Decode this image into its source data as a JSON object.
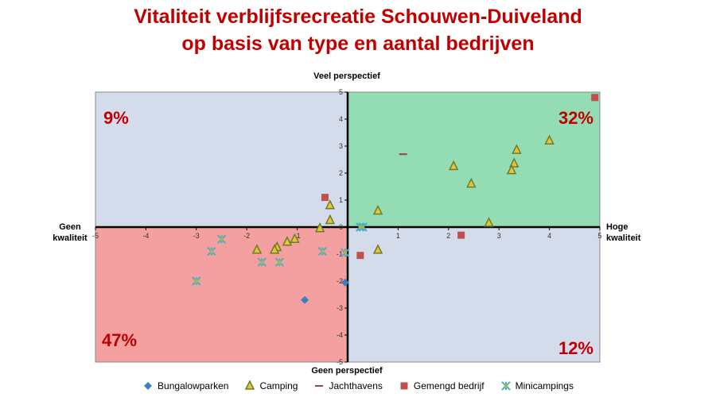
{
  "title_line1": "Vitaliteit verblijfsrecreatie Schouwen-Duiveland",
  "title_line2": "op basis van type en aantal bedrijven",
  "axis_labels": {
    "top": "Veel perspectief",
    "bottom": "Geen perspectief",
    "left_line1": "Geen",
    "left_line2": "kwaliteit",
    "right_line1": "Hoge",
    "right_line2": "kwaliteit"
  },
  "quadrants": {
    "top_left": {
      "percent": "9%",
      "color": "#d4dcec"
    },
    "top_right": {
      "percent": "32%",
      "color": "#94dcb4"
    },
    "bottom_left": {
      "percent": "47%",
      "color": "#f4a0a0"
    },
    "bottom_right": {
      "percent": "12%",
      "color": "#d4dcec"
    }
  },
  "chart_data": {
    "type": "scatter",
    "xlim": [
      -5,
      5
    ],
    "ylim": [
      -5,
      5
    ],
    "x_ticks": [
      -5,
      -4,
      -3,
      -2,
      -1,
      0,
      1,
      2,
      3,
      4,
      5
    ],
    "y_ticks": [
      -5,
      -4,
      -3,
      -2,
      -1,
      0,
      1,
      2,
      3,
      4,
      5
    ],
    "grid": false,
    "legend_position": "bottom",
    "series": [
      {
        "name": "Bungalowparken",
        "marker": "diamond",
        "color": "#3f7fbf",
        "points": [
          [
            -0.85,
            -2.7
          ],
          [
            -0.05,
            -2.05
          ]
        ]
      },
      {
        "name": "Camping",
        "marker": "triangle",
        "color": "#6b7d2a",
        "points": [
          [
            -0.35,
            0.8
          ],
          [
            -0.35,
            0.25
          ],
          [
            -0.55,
            -0.05
          ],
          [
            -1.05,
            -0.45
          ],
          [
            -1.2,
            -0.55
          ],
          [
            -1.4,
            -0.75
          ],
          [
            -1.45,
            -0.85
          ],
          [
            -1.8,
            -0.85
          ],
          [
            0.6,
            0.6
          ],
          [
            2.1,
            2.25
          ],
          [
            2.45,
            1.6
          ],
          [
            2.8,
            0.15
          ],
          [
            3.35,
            2.85
          ],
          [
            3.3,
            2.35
          ],
          [
            3.25,
            2.1
          ],
          [
            4.0,
            3.2
          ],
          [
            0.6,
            -0.85
          ]
        ]
      },
      {
        "name": "Jachthavens",
        "marker": "dash",
        "color": "#8b4a4a",
        "points": [
          [
            1.1,
            2.7
          ]
        ]
      },
      {
        "name": "Gemengd bedrijf",
        "marker": "square",
        "color": "#c0504d",
        "points": [
          [
            -0.45,
            1.1
          ],
          [
            4.9,
            4.8
          ],
          [
            2.25,
            -0.3
          ],
          [
            0.25,
            -1.05
          ]
        ]
      },
      {
        "name": "Minicampings",
        "marker": "star",
        "color": "#4bacc6",
        "points": [
          [
            -3.0,
            -2.0
          ],
          [
            -2.7,
            -0.9
          ],
          [
            -2.5,
            -0.45
          ],
          [
            -1.7,
            -1.3
          ],
          [
            -1.35,
            -1.3
          ],
          [
            -0.5,
            -0.9
          ],
          [
            0.3,
            0.0
          ],
          [
            0.25,
            0.0
          ],
          [
            -0.05,
            -0.95
          ]
        ]
      }
    ]
  }
}
